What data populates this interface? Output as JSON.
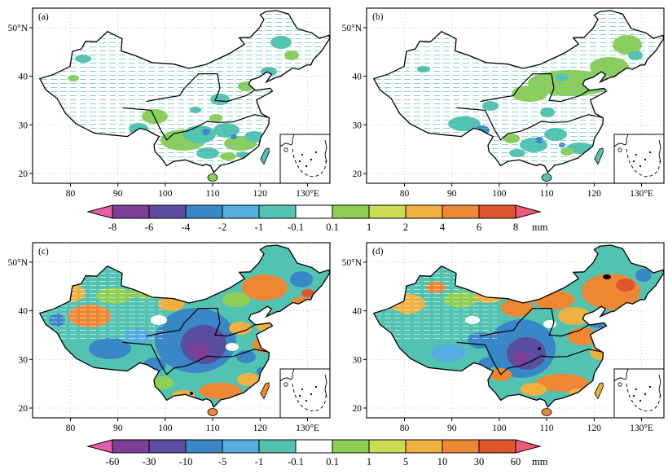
{
  "figure": {
    "panels": [
      {
        "label": "(a)"
      },
      {
        "label": "(b)"
      },
      {
        "label": "(c)"
      },
      {
        "label": "(d)"
      }
    ],
    "lat_ticks": [
      "50°N",
      "40",
      "30",
      "20"
    ],
    "lon_ticks": [
      "80",
      "90",
      "100",
      "110",
      "120",
      "130°E"
    ],
    "palette": [
      "#e85fa8",
      "#7d3f98",
      "#5b4ea0",
      "#3a87c8",
      "#55aedd",
      "#53c3b1",
      "#ffffff",
      "#8fce54",
      "#cadd52",
      "#f0b03f",
      "#ed8733",
      "#e2562f",
      "#ef5a78"
    ],
    "colorbars": [
      {
        "position": "top",
        "ticks": [
          "-8",
          "-6",
          "-4",
          "-2",
          "-1",
          "-0.1",
          "0.1",
          "1",
          "2",
          "4",
          "6",
          "8"
        ],
        "unit": "mm"
      },
      {
        "position": "bottom",
        "ticks": [
          "-60",
          "-30",
          "-10",
          "-5",
          "-1",
          "-0.1",
          "0.1",
          "1",
          "5",
          "10",
          "30",
          "60"
        ],
        "unit": "mm"
      }
    ]
  }
}
